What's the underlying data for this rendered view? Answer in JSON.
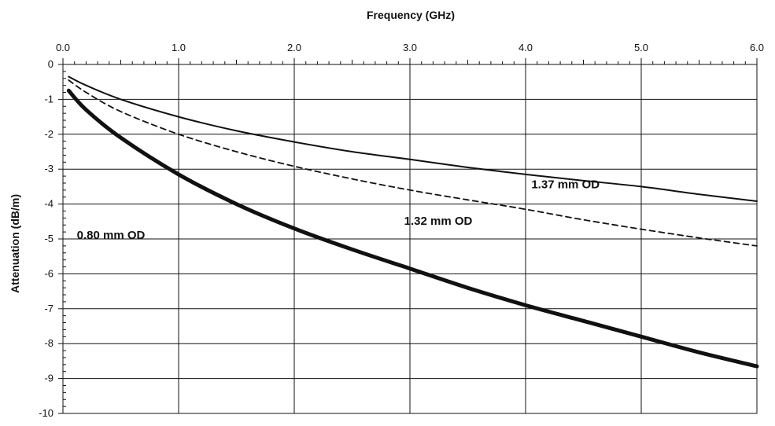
{
  "chart_data": {
    "type": "line",
    "title": "",
    "xlabel": "Frequency (GHz)",
    "ylabel": "Attenuation (dB/m)",
    "xlim": [
      0,
      6
    ],
    "ylim": [
      -10,
      0
    ],
    "x_ticks": [
      "0.0",
      "1.0",
      "2.0",
      "3.0",
      "4.0",
      "5.0",
      "6.0"
    ],
    "y_ticks": [
      "0",
      "-1",
      "-2",
      "-3",
      "-4",
      "-5",
      "-6",
      "-7",
      "-8",
      "-9",
      "-10"
    ],
    "x_axis_position": "top",
    "grid": true,
    "series": [
      {
        "name": "1.37 mm OD",
        "style": "solid-thin",
        "color": "#111111",
        "x": [
          0.05,
          0.2,
          0.5,
          1.0,
          1.5,
          2.0,
          2.5,
          3.0,
          3.5,
          4.0,
          4.5,
          5.0,
          5.5,
          6.0
        ],
        "y": [
          -0.35,
          -0.6,
          -1.0,
          -1.5,
          -1.9,
          -2.22,
          -2.5,
          -2.72,
          -2.95,
          -3.15,
          -3.33,
          -3.5,
          -3.72,
          -3.92
        ]
      },
      {
        "name": "1.32 mm OD",
        "style": "dashed",
        "color": "#111111",
        "x": [
          0.05,
          0.2,
          0.5,
          1.0,
          1.5,
          2.0,
          2.5,
          3.0,
          3.5,
          4.0,
          4.5,
          5.0,
          5.5,
          6.0
        ],
        "y": [
          -0.45,
          -0.8,
          -1.35,
          -2.0,
          -2.5,
          -2.92,
          -3.28,
          -3.6,
          -3.88,
          -4.15,
          -4.45,
          -4.72,
          -4.97,
          -5.2
        ]
      },
      {
        "name": "0.80 mm OD",
        "style": "solid-thick",
        "color": "#111111",
        "x": [
          0.05,
          0.2,
          0.5,
          1.0,
          1.5,
          2.0,
          2.5,
          3.0,
          3.5,
          4.0,
          4.5,
          5.0,
          5.5,
          6.0
        ],
        "y": [
          -0.75,
          -1.3,
          -2.1,
          -3.15,
          -4.0,
          -4.7,
          -5.3,
          -5.85,
          -6.4,
          -6.9,
          -7.35,
          -7.8,
          -8.25,
          -8.65
        ]
      }
    ],
    "annotations": [
      {
        "text": "1.37 mm OD",
        "x": 4.05,
        "y": -3.55
      },
      {
        "text": "1.32 mm OD",
        "x": 2.95,
        "y": -4.6
      },
      {
        "text": "0.80 mm OD",
        "x": 0.12,
        "y": -5.0
      }
    ]
  }
}
